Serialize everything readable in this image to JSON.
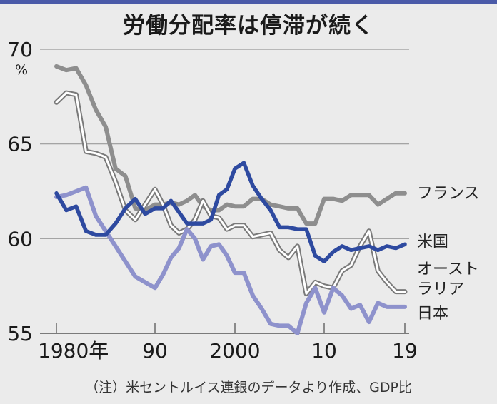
{
  "header": {
    "title": "労働分配率は停滞が続く"
  },
  "note": "（注）米セントルイス連銀のデータより作成、GDP比",
  "colors": {
    "topbar": "#4a5aa8",
    "france": "#8e8e8e",
    "australia_outline": "#7a7a7a",
    "australia_fill": "#ffffff",
    "us": "#2e4aa0",
    "japan": "#8e92cc",
    "grid": "#9a9a9a",
    "background": "#ebebeb"
  },
  "chart_data": {
    "type": "line",
    "title": "労働分配率は停滞が続く",
    "xlabel": "",
    "ylabel": "%",
    "ylim": [
      55,
      70
    ],
    "xlim": [
      1980,
      2019
    ],
    "grid": true,
    "yticks": [
      {
        "value": 70,
        "label": "70"
      },
      {
        "value": 65,
        "label": "65"
      },
      {
        "value": 60,
        "label": "60"
      },
      {
        "value": 55,
        "label": "55"
      }
    ],
    "xticks": [
      {
        "value": 1980,
        "label": "1980年"
      },
      {
        "value": 1990,
        "label": "90"
      },
      {
        "value": 2000,
        "label": "2000"
      },
      {
        "value": 2010,
        "label": "10"
      },
      {
        "value": 2019,
        "label": "19"
      }
    ],
    "y_unit_label": "%",
    "x": [
      1980,
      1981,
      1982,
      1983,
      1984,
      1985,
      1986,
      1987,
      1988,
      1989,
      1990,
      1991,
      1992,
      1993,
      1994,
      1995,
      1996,
      1997,
      1998,
      1999,
      2000,
      2001,
      2002,
      2003,
      2004,
      2005,
      2006,
      2007,
      2008,
      2009,
      2010,
      2011,
      2012,
      2013,
      2014,
      2015,
      2016,
      2017,
      2018,
      2019
    ],
    "series": [
      {
        "key": "france",
        "name": "フランス",
        "legend_label": "フランス",
        "values": [
          69.1,
          68.9,
          69.0,
          68.1,
          66.8,
          65.9,
          63.7,
          63.3,
          61.6,
          61.5,
          61.8,
          61.8,
          61.9,
          61.8,
          62.0,
          62.3,
          61.7,
          61.5,
          61.5,
          61.8,
          61.7,
          61.7,
          62.1,
          62.1,
          61.8,
          61.7,
          61.6,
          61.6,
          60.8,
          60.8,
          62.1,
          62.1,
          62.0,
          62.3,
          62.3,
          62.3,
          61.8,
          62.1,
          62.4,
          62.4
        ]
      },
      {
        "key": "australia",
        "name": "オーストラリア",
        "legend_label_lines": [
          "オースト",
          "ラリア"
        ],
        "values": [
          67.2,
          67.7,
          67.6,
          64.6,
          64.5,
          64.3,
          63.0,
          61.5,
          61.0,
          61.8,
          62.6,
          61.8,
          60.7,
          60.3,
          60.5,
          61.0,
          62.0,
          61.2,
          61.1,
          60.5,
          60.7,
          60.7,
          60.1,
          60.2,
          60.3,
          59.4,
          59.0,
          59.6,
          57.1,
          57.7,
          57.5,
          57.4,
          58.3,
          58.6,
          59.6,
          60.4,
          58.3,
          57.7,
          57.2,
          57.2
        ]
      },
      {
        "key": "us",
        "name": "米国",
        "legend_label": "米国",
        "values": [
          62.4,
          61.5,
          61.7,
          60.4,
          60.2,
          60.2,
          60.8,
          61.6,
          62.1,
          61.3,
          61.6,
          61.6,
          62.0,
          61.4,
          60.8,
          60.8,
          60.8,
          61.0,
          62.3,
          62.6,
          63.7,
          64.0,
          62.8,
          62.1,
          61.5,
          60.6,
          60.6,
          60.5,
          60.5,
          59.1,
          58.8,
          59.3,
          59.6,
          59.4,
          59.5,
          59.6,
          59.4,
          59.6,
          59.5,
          59.7
        ]
      },
      {
        "key": "japan",
        "name": "日本",
        "legend_label": "日本",
        "values": [
          62.2,
          62.3,
          62.5,
          62.7,
          61.2,
          60.4,
          59.6,
          58.8,
          58.0,
          57.7,
          57.4,
          58.1,
          59.0,
          59.5,
          60.5,
          60.0,
          58.9,
          59.6,
          59.7,
          59.1,
          58.2,
          58.2,
          57.0,
          56.3,
          55.5,
          55.4,
          55.4,
          55.0,
          56.6,
          57.4,
          56.1,
          57.4,
          57.0,
          56.3,
          56.5,
          55.6,
          56.6,
          56.4,
          56.4,
          56.4
        ]
      }
    ]
  }
}
